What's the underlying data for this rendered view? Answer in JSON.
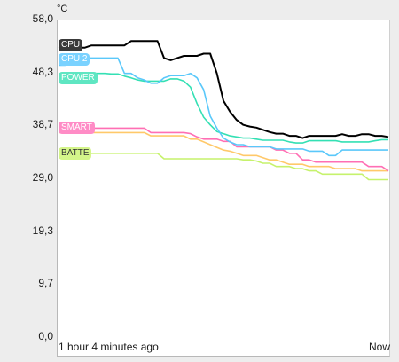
{
  "chart_data": {
    "type": "line",
    "unit": "°C",
    "y_ticks": [
      "58,0",
      "48,3",
      "38,7",
      "29,0",
      "19,3",
      "9,7",
      "0,0"
    ],
    "ylim": [
      0,
      58.0
    ],
    "x_labels": {
      "start": "1 hour 4 minutes  ago",
      "end": "Now"
    },
    "grid": false,
    "x": [
      0.0,
      0.02,
      0.04,
      0.06,
      0.08,
      0.1,
      0.12,
      0.14,
      0.16,
      0.18,
      0.2,
      0.22,
      0.24,
      0.26,
      0.28,
      0.3,
      0.32,
      0.34,
      0.36,
      0.38,
      0.4,
      0.42,
      0.44,
      0.46,
      0.48,
      0.5,
      0.52,
      0.54,
      0.56,
      0.58,
      0.6,
      0.62,
      0.64,
      0.66,
      0.68,
      0.7,
      0.72,
      0.74,
      0.76,
      0.78,
      0.8,
      0.82,
      0.84,
      0.86,
      0.88,
      0.9,
      0.92,
      0.94,
      0.96,
      0.98,
      1.0
    ],
    "series": [
      {
        "name": "CPU",
        "color": "#000000",
        "values": [
          52.6,
          52.7,
          52.7,
          52.7,
          52.7,
          53.1,
          53.1,
          53.1,
          53.1,
          53.1,
          53.1,
          53.9,
          53.9,
          53.9,
          53.9,
          53.9,
          50.8,
          50.4,
          50.8,
          51.2,
          51.2,
          51.2,
          51.6,
          51.6,
          48.0,
          43.0,
          41.0,
          39.5,
          38.6,
          38.3,
          38.1,
          37.7,
          37.3,
          37.0,
          37.0,
          36.6,
          36.6,
          36.2,
          36.6,
          36.6,
          36.6,
          36.6,
          36.6,
          36.9,
          36.6,
          36.6,
          36.9,
          36.9,
          36.6,
          36.6,
          36.4
        ]
      },
      {
        "name": "CPU 2",
        "color": "#5ac8fa",
        "values": [
          49.5,
          49.5,
          50.8,
          50.8,
          50.8,
          50.8,
          50.8,
          50.8,
          50.8,
          50.8,
          48.0,
          48.0,
          47.2,
          46.8,
          46.2,
          46.2,
          47.2,
          47.6,
          47.6,
          47.6,
          48.0,
          47.2,
          45.0,
          40.2,
          38.0,
          36.2,
          35.5,
          35.0,
          35.0,
          34.6,
          34.6,
          34.6,
          34.6,
          34.2,
          34.2,
          34.2,
          34.2,
          34.2,
          33.8,
          33.8,
          33.8,
          33.0,
          33.0,
          34.0,
          34.0,
          34.0,
          34.0,
          34.0,
          34.0,
          34.0,
          34.0
        ]
      },
      {
        "name": "POWER",
        "color": "#34e0b4",
        "values": [
          47.7,
          47.7,
          47.8,
          47.8,
          47.8,
          48.0,
          48.0,
          48.0,
          47.9,
          47.9,
          47.5,
          47.2,
          46.8,
          46.6,
          46.6,
          46.6,
          46.6,
          47.0,
          47.0,
          46.6,
          45.5,
          42.5,
          40.0,
          38.6,
          37.4,
          37.0,
          36.6,
          36.4,
          36.2,
          36.2,
          36.0,
          35.8,
          35.8,
          35.8,
          35.8,
          35.5,
          35.3,
          35.3,
          35.7,
          35.7,
          35.7,
          35.7,
          35.7,
          35.5,
          35.5,
          35.5,
          35.5,
          35.5,
          35.7,
          35.9,
          35.9
        ]
      },
      {
        "name": "SMART",
        "color": "#ff6fb4",
        "values": [
          38.0,
          38.0,
          38.0,
          38.0,
          38.0,
          38.0,
          38.0,
          38.0,
          38.0,
          38.0,
          38.0,
          38.0,
          38.0,
          38.0,
          37.2,
          37.2,
          37.2,
          37.2,
          37.2,
          37.2,
          37.0,
          36.4,
          36.0,
          36.0,
          36.0,
          35.6,
          35.6,
          34.6,
          34.6,
          34.6,
          34.6,
          34.6,
          34.6,
          34.0,
          34.0,
          33.4,
          33.4,
          32.2,
          32.2,
          31.8,
          31.8,
          31.8,
          31.8,
          31.8,
          31.8,
          31.8,
          31.8,
          31.0,
          31.0,
          31.0,
          30.2
        ]
      },
      {
        "name": "",
        "color": "#ffc96a",
        "values": [
          37.2,
          37.2,
          37.2,
          37.2,
          37.2,
          37.2,
          37.2,
          37.2,
          37.2,
          37.2,
          37.2,
          37.2,
          37.2,
          37.2,
          36.6,
          36.6,
          36.6,
          36.6,
          36.6,
          36.6,
          36.0,
          36.0,
          35.5,
          35.0,
          34.5,
          34.0,
          33.8,
          33.4,
          33.0,
          33.0,
          33.0,
          32.6,
          32.2,
          32.2,
          31.8,
          31.4,
          31.4,
          31.4,
          31.0,
          31.0,
          31.0,
          31.0,
          30.6,
          30.6,
          30.6,
          30.6,
          30.2,
          30.2,
          30.2,
          30.2,
          30.2
        ]
      },
      {
        "name": "BATTE",
        "color": "#c6f26c",
        "values": [
          33.4,
          33.4,
          33.4,
          33.4,
          33.4,
          33.4,
          33.4,
          33.4,
          33.4,
          33.4,
          33.4,
          33.4,
          33.4,
          33.4,
          33.4,
          33.4,
          32.4,
          32.4,
          32.4,
          32.4,
          32.4,
          32.4,
          32.4,
          32.4,
          32.4,
          32.4,
          32.4,
          32.4,
          32.2,
          32.2,
          32.0,
          31.6,
          31.6,
          31.0,
          31.0,
          31.0,
          30.6,
          30.6,
          30.2,
          30.2,
          29.6,
          29.6,
          29.6,
          29.6,
          29.6,
          29.6,
          29.6,
          28.6,
          28.6,
          28.6,
          28.6
        ]
      }
    ],
    "legend_tags": [
      {
        "label": "CPU",
        "series": 0,
        "bg": "#3a3a3a",
        "fg": "#ffffff"
      },
      {
        "label": "CPU 2",
        "series": 1,
        "bg": "#7ad2ff",
        "fg": "#ffffff"
      },
      {
        "label": "POWER",
        "series": 2,
        "bg": "#5fe6c2",
        "fg": "#ffffff"
      },
      {
        "label": "SMART",
        "series": 3,
        "bg": "#ff8cc6",
        "fg": "#ffffff"
      },
      {
        "label": "BATTE",
        "series": 5,
        "bg": "#d4f58a",
        "fg": "#333333"
      }
    ]
  }
}
